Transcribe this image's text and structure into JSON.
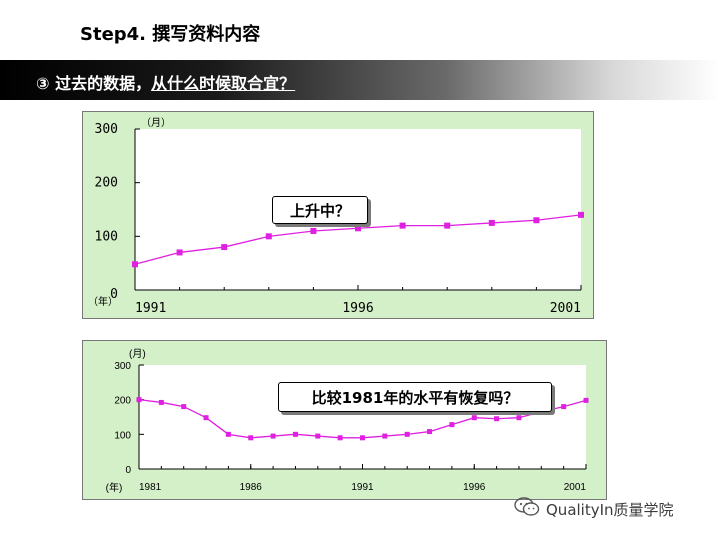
{
  "slide": {
    "title": "Step4. 撰写资料内容"
  },
  "section": {
    "number": "③",
    "text_plain": "过去的数据，",
    "text_underlined": "从什么时候取合宜？"
  },
  "callouts": {
    "chart1": "上升中？",
    "chart2": "比较1981年的水平有恢复吗？"
  },
  "watermark": {
    "text": "QualityIn质量学院",
    "icon": "wechat-icon"
  },
  "colors": {
    "plot_bg": "#ffffff",
    "frame_bg": "#d4f0c8",
    "series": "#e020e0"
  },
  "chart_data": [
    {
      "type": "line",
      "y_unit_label": "（月）",
      "x_unit_label": "（年）",
      "x_tick_labels": [
        "1991",
        "1996",
        "2001"
      ],
      "y_tick_labels": [
        "300",
        "200",
        "100",
        "0"
      ],
      "x": [
        1991,
        1992,
        1993,
        1994,
        1995,
        1996,
        1997,
        1998,
        1999,
        2000,
        2001
      ],
      "xlim": [
        1991,
        2001
      ],
      "ylim": [
        0,
        300
      ],
      "series": [
        {
          "values": [
            48,
            70,
            80,
            100,
            110,
            115,
            120,
            120,
            125,
            130,
            140
          ]
        }
      ],
      "grid": false
    },
    {
      "type": "line",
      "y_unit_label": "(月)",
      "x_unit_label": "(年)",
      "x_tick_labels": [
        "1981",
        "1986",
        "1991",
        "1996",
        "2001"
      ],
      "y_tick_labels": [
        "300",
        "200",
        "100",
        "0"
      ],
      "x": [
        1981,
        1982,
        1983,
        1984,
        1985,
        1986,
        1987,
        1988,
        1989,
        1990,
        1991,
        1992,
        1993,
        1994,
        1995,
        1996,
        1997,
        1998,
        1999,
        2000,
        2001
      ],
      "xlim": [
        1981,
        2001
      ],
      "ylim": [
        0,
        300
      ],
      "series": [
        {
          "values": [
            200,
            192,
            180,
            148,
            100,
            90,
            95,
            100,
            95,
            90,
            90,
            95,
            100,
            108,
            128,
            148,
            145,
            148,
            165,
            180,
            198
          ]
        }
      ],
      "grid": false
    }
  ]
}
